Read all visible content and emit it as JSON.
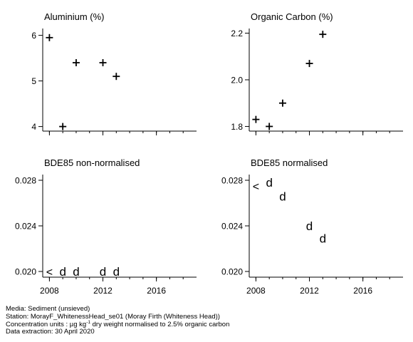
{
  "chart_data": [
    {
      "type": "scatter",
      "title": "Aluminium (%)",
      "xlim": [
        2007.5,
        2019
      ],
      "ylim": [
        3.9,
        6.15
      ],
      "x_ticks": [
        2008,
        2012,
        2016
      ],
      "x_tick_labels": [],
      "y_ticks": [
        4,
        5,
        6
      ],
      "y_tick_labels": [
        "4",
        "5",
        "6"
      ],
      "points": [
        {
          "x": 2008,
          "y": 5.95,
          "marker": "+"
        },
        {
          "x": 2009,
          "y": 4.0,
          "marker": "+"
        },
        {
          "x": 2010,
          "y": 5.4,
          "marker": "+"
        },
        {
          "x": 2012,
          "y": 5.4,
          "marker": "+"
        },
        {
          "x": 2013,
          "y": 5.1,
          "marker": "+"
        }
      ]
    },
    {
      "type": "scatter",
      "title": "Organic Carbon (%)",
      "xlim": [
        2007.5,
        2019
      ],
      "ylim": [
        1.78,
        2.22
      ],
      "x_ticks": [
        2008,
        2012,
        2016
      ],
      "x_tick_labels": [],
      "y_ticks": [
        1.8,
        2.0,
        2.2
      ],
      "y_tick_labels": [
        "1.8",
        "2.0",
        "2.2"
      ],
      "points": [
        {
          "x": 2008,
          "y": 1.83,
          "marker": "+"
        },
        {
          "x": 2009,
          "y": 1.8,
          "marker": "+"
        },
        {
          "x": 2010,
          "y": 1.9,
          "marker": "+"
        },
        {
          "x": 2012,
          "y": 2.07,
          "marker": "+"
        },
        {
          "x": 2013,
          "y": 2.195,
          "marker": "+"
        }
      ]
    },
    {
      "type": "scatter",
      "title": "BDE85 non-normalised",
      "xlim": [
        2007.5,
        2019
      ],
      "ylim": [
        0.0195,
        0.0285
      ],
      "x_ticks": [
        2008,
        2012,
        2016
      ],
      "x_tick_labels": [
        "2008",
        "2012",
        "2016"
      ],
      "y_ticks": [
        0.02,
        0.024,
        0.028
      ],
      "y_tick_labels": [
        "0.020",
        "0.024",
        "0.028"
      ],
      "points": [
        {
          "x": 2008,
          "y": 0.02,
          "marker": "<"
        },
        {
          "x": 2009,
          "y": 0.02,
          "marker": "d"
        },
        {
          "x": 2010,
          "y": 0.02,
          "marker": "d"
        },
        {
          "x": 2012,
          "y": 0.02,
          "marker": "d"
        },
        {
          "x": 2013,
          "y": 0.02,
          "marker": "d"
        }
      ]
    },
    {
      "type": "scatter",
      "title": "BDE85 normalised",
      "xlim": [
        2007.5,
        2019
      ],
      "ylim": [
        0.0195,
        0.0285
      ],
      "x_ticks": [
        2008,
        2012,
        2016
      ],
      "x_tick_labels": [
        "2008",
        "2012",
        "2016"
      ],
      "y_ticks": [
        0.02,
        0.024,
        0.028
      ],
      "y_tick_labels": [
        "0.020",
        "0.024",
        "0.028"
      ],
      "points": [
        {
          "x": 2008,
          "y": 0.0275,
          "marker": "<"
        },
        {
          "x": 2009,
          "y": 0.0278,
          "marker": "d"
        },
        {
          "x": 2010,
          "y": 0.0266,
          "marker": "d"
        },
        {
          "x": 2012,
          "y": 0.024,
          "marker": "d"
        },
        {
          "x": 2013,
          "y": 0.0229,
          "marker": "d"
        }
      ]
    }
  ],
  "caption": {
    "media": "Media: Sediment (unsieved)",
    "station": "Station: MorayF_WhitenessHead_se01 (Moray Firth (Whiteness Head))",
    "units_prefix": "Concentration units : µg kg",
    "units_sup": "-1",
    "units_suffix": " dry weight normalised to 2.5% organic carbon",
    "extraction": "Data extraction: 30 April 2020"
  }
}
